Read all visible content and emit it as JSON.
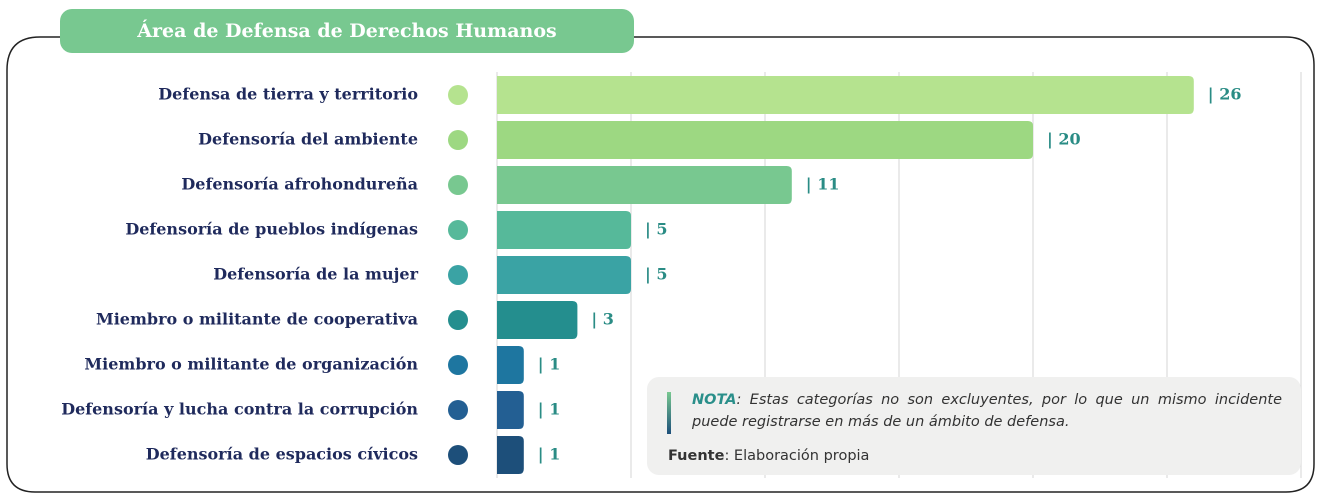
{
  "chart_data": {
    "type": "bar",
    "orientation": "horizontal",
    "title": "Área de Defensa de Derechos Humanos",
    "categories": [
      "Defensa de tierra y territorio",
      "Defensoría del ambiente",
      "Defensoría afrohondureña",
      "Defensoría de pueblos indígenas",
      "Defensoría de la mujer",
      "Miembro o militante de cooperativa",
      "Miembro o militante de organización",
      "Defensoría y lucha contra la corrupción",
      "Defensoría de espacios cívicos"
    ],
    "values": [
      26,
      20,
      11,
      5,
      5,
      3,
      1,
      1,
      1
    ],
    "value_labels": [
      "| 26",
      "| 20",
      "| 11",
      "| 5",
      "| 5",
      "| 3",
      "| 1",
      "| 1",
      "| 1"
    ],
    "colors": [
      "#b5e38f",
      "#9dd882",
      "#78c890",
      "#56b99a",
      "#3aa3a4",
      "#248e8e",
      "#1e76a0",
      "#235f93",
      "#1d4f7a"
    ],
    "xlim": [
      0,
      30
    ],
    "xticks": [
      0,
      5,
      10,
      15,
      20,
      25,
      30
    ],
    "grid": true,
    "note": {
      "label": "NOTA",
      "text": ": Estas categorías no son excluyentes, por lo que un mismo incidente puede registrarse en más de un ámbito de defensa."
    },
    "source": {
      "label": "Fuente",
      "text": ": Elaboración propia"
    }
  }
}
